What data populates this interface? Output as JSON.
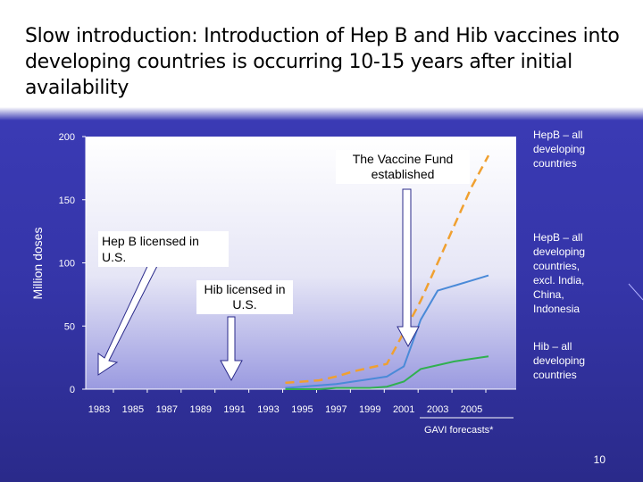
{
  "page": {
    "title": "Slow introduction:  Introduction of Hep B and Hib vaccines into developing countries is occurring 10-15 years after initial availability",
    "page_number": "10"
  },
  "annotations": {
    "vaccine_fund": "The Vaccine Fund established",
    "hepb_licensed": "Hep B licensed in U.S.",
    "hib_licensed": "Hib licensed in U.S.",
    "gavi_forecasts": "GAVI forecasts*"
  },
  "series_labels": {
    "hepb_all": "HepB – all developing countries",
    "hepb_excl": "HepB – all developing countries, excl. India, China, Indonesia",
    "hib_all": "Hib – all developing countries"
  },
  "chart_data": {
    "type": "line",
    "title": "",
    "xlabel": "",
    "ylabel": "Million doses",
    "xlim": [
      1983,
      2006
    ],
    "ylim": [
      0,
      200
    ],
    "x_ticks": [
      1983,
      1985,
      1987,
      1989,
      1991,
      1993,
      1995,
      1997,
      1999,
      2001,
      2003,
      2005
    ],
    "y_ticks": [
      0,
      50,
      100,
      150,
      200
    ],
    "grid": false,
    "series": [
      {
        "name": "HepB – all developing countries",
        "color": "#f0a030",
        "style": "dashed",
        "x": [
          1994,
          1995,
          1996,
          1997,
          1998,
          1999,
          2000,
          2001,
          2002,
          2003,
          2004,
          2005,
          2006
        ],
        "y": [
          5,
          6,
          7,
          10,
          14,
          17,
          20,
          45,
          70,
          100,
          130,
          160,
          185
        ]
      },
      {
        "name": "HepB – all developing countries, excl. India, China, Indonesia",
        "color": "#4a8ad8",
        "style": "solid",
        "x": [
          1994,
          1995,
          1996,
          1997,
          1998,
          1999,
          2000,
          2001,
          2002,
          2003,
          2004,
          2005,
          2006
        ],
        "y": [
          1,
          2,
          3,
          4,
          6,
          8,
          10,
          18,
          55,
          78,
          82,
          86,
          90
        ]
      },
      {
        "name": "Hib – all developing countries",
        "color": "#30b050",
        "style": "solid",
        "x": [
          1994,
          1995,
          1996,
          1997,
          1998,
          1999,
          2000,
          2001,
          2002,
          2003,
          2004,
          2005,
          2006
        ],
        "y": [
          0,
          0,
          0,
          1,
          1,
          1,
          2,
          6,
          16,
          19,
          22,
          24,
          26
        ]
      }
    ]
  }
}
